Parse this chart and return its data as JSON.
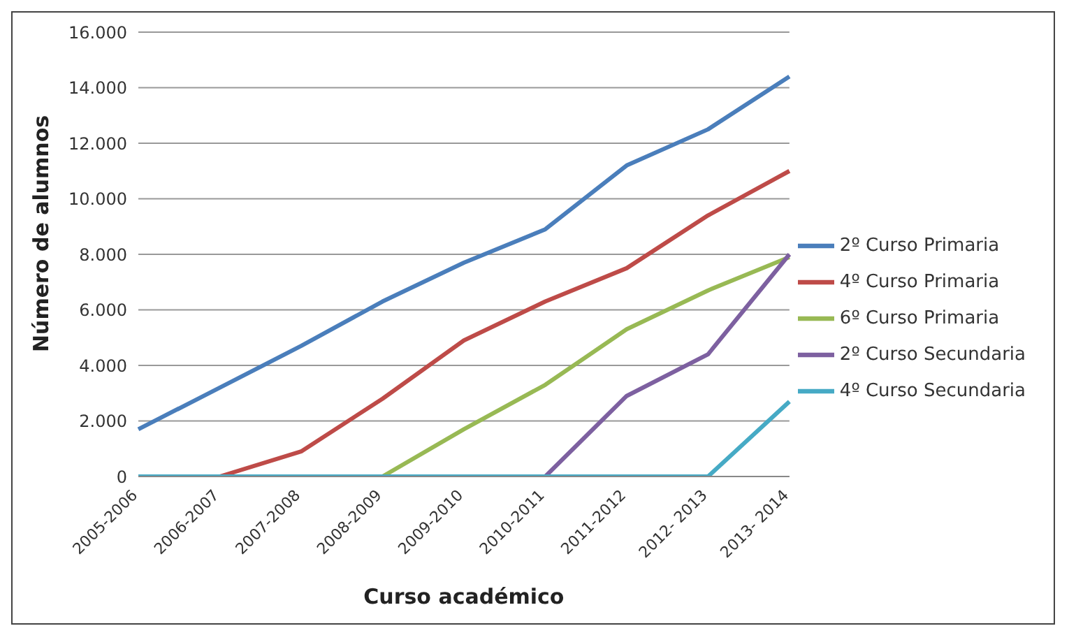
{
  "chart_data": {
    "type": "line",
    "xlabel": "Curso académico",
    "ylabel": "Número de alumnos",
    "categories": [
      "2005-2006",
      "2006-2007",
      "2007-2008",
      "2008-2009",
      "2009-2010",
      "2010-2011",
      "2011-2012",
      "2012- 2013",
      "2013- 2014"
    ],
    "series": [
      {
        "name": "2º Curso Primaria",
        "color": "#4a7ebb",
        "values": [
          1700,
          3200,
          4700,
          6300,
          7700,
          8900,
          11200,
          12500,
          14400
        ]
      },
      {
        "name": "4º Curso Primaria",
        "color": "#be4b48",
        "values": [
          null,
          0,
          900,
          2800,
          4900,
          6300,
          7500,
          9400,
          11000
        ]
      },
      {
        "name": "6º Curso Primaria",
        "color": "#98b954",
        "values": [
          null,
          null,
          null,
          0,
          1700,
          3300,
          5300,
          6700,
          7900
        ]
      },
      {
        "name": "2º Curso Secundaria",
        "color": "#7d60a0",
        "values": [
          null,
          null,
          null,
          null,
          null,
          0,
          2900,
          4400,
          8000
        ]
      },
      {
        "name": "4º Curso Secundaria",
        "color": "#46aac5",
        "values": [
          0,
          0,
          0,
          0,
          0,
          0,
          0,
          0,
          2700
        ]
      }
    ],
    "ylim": [
      0,
      16000
    ],
    "yticks": [
      {
        "value": 0,
        "label": "0"
      },
      {
        "value": 2000,
        "label": "2.000"
      },
      {
        "value": 4000,
        "label": "4.000"
      },
      {
        "value": 6000,
        "label": "6.000"
      },
      {
        "value": 8000,
        "label": "8.000"
      },
      {
        "value": 10000,
        "label": "10.000"
      },
      {
        "value": 12000,
        "label": "12.000"
      },
      {
        "value": 14000,
        "label": "14.000"
      },
      {
        "value": 16000,
        "label": "16.000"
      }
    ],
    "grid": "y",
    "legend": "right",
    "marker": "none",
    "line_style": "solid"
  }
}
